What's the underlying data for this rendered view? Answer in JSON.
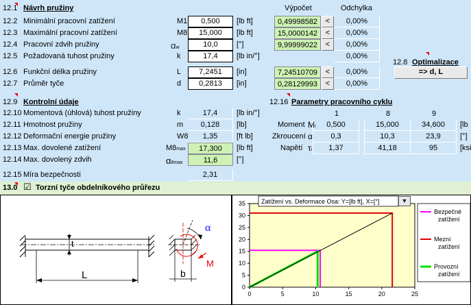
{
  "section_12": {
    "num": "12.1",
    "title": "Návrh pružiny",
    "col_vypocet": "Výpočet",
    "col_odchylka": "Odchylka",
    "rows": [
      {
        "num": "12.2",
        "label": "Minimální pracovní zatížení",
        "sym": "M1",
        "value": "0,500",
        "unit": "[lb ft]",
        "calc": "0,49998582",
        "dev": "0,00%"
      },
      {
        "num": "12.3",
        "label": "Maximální pracovní zatížení",
        "sym": "M8",
        "value": "15,000",
        "unit": "[lb ft]",
        "calc": "15,0000142",
        "dev": "0,00%"
      },
      {
        "num": "12.4",
        "label": "Pracovní zdvih pružiny",
        "sym": "α",
        "sym_sub": "w",
        "value": "10,0",
        "unit": "[°]",
        "calc": "9,99999022",
        "dev": "0,00%"
      },
      {
        "num": "12.5",
        "label": "Požadovaná tuhost pružiny",
        "sym": "k",
        "value": "17,4",
        "unit": "[lb in/°]",
        "calc": "",
        "dev": "0,00%"
      },
      {
        "num": "12.6",
        "label": "Funkční délka pružiny",
        "sym": "L",
        "value": "7,2451",
        "unit": "[in]",
        "calc": "7,24510709",
        "dev": "0,00%"
      },
      {
        "num": "12.7",
        "label": "Průměr tyče",
        "sym": "d",
        "value": "0,2813",
        "unit": "[in]",
        "calc": "0,28129993",
        "dev": "0,00%"
      }
    ],
    "lt_label": "<"
  },
  "optim": {
    "num": "12.8",
    "title": "Optimalizace",
    "button": "=> d, L"
  },
  "section_129": {
    "num": "12.9",
    "title": "Kontrolní údaje",
    "rows": [
      {
        "num": "12.10",
        "label": "Momentová (úhlová) tuhost pružiny",
        "sym": "k",
        "value": "17,4",
        "unit": "[lb in/°]"
      },
      {
        "num": "12.11",
        "label": "Hmotnost pružiny",
        "sym": "m",
        "value": "0,128",
        "unit": "[lb]"
      },
      {
        "num": "12.12",
        "label": "Deformační energie pružiny",
        "sym": "W8",
        "value": "1,35",
        "unit": "[ft lb]"
      },
      {
        "num": "12.13",
        "label": "Max. dovolené zatížení",
        "sym": "M8",
        "sym_sub": "max",
        "value": "17,300",
        "unit": "[lb ft]"
      },
      {
        "num": "12.14",
        "label": "Max. dovolený zdvih",
        "sym": "α",
        "sym_sub": "8max",
        "value": "11,6",
        "unit": "[°]"
      },
      {
        "num": "12.15",
        "label": "Míra bezpečnosti",
        "sym": "",
        "value": "2,31",
        "unit": ""
      }
    ]
  },
  "cycle": {
    "num": "12.16",
    "title": "Parametry pracovního cyklu",
    "cols": [
      "1",
      "8",
      "9"
    ],
    "rows": [
      {
        "label": "Moment",
        "sym": "M",
        "sub": "i",
        "values": [
          "0,500",
          "15,000",
          "34,600"
        ],
        "unit": "[lb"
      },
      {
        "label": "Zkroucení",
        "sym": "α",
        "sub": "i",
        "values": [
          "0,3",
          "10,3",
          "23,9"
        ],
        "unit": "[°]"
      },
      {
        "label": "Napětí",
        "sym": "τ",
        "sub": "i",
        "values": [
          "1,37",
          "41,18",
          "95"
        ],
        "unit": "[ksi"
      }
    ]
  },
  "section_13": {
    "num": "13.0",
    "checkbox": "☑",
    "title": "Torzní tyče obdelníkového průřezu"
  },
  "drawing": {
    "label_t": "t",
    "label_L": "L",
    "label_b": "b",
    "label_alpha": "α",
    "label_M": "M"
  },
  "chart_data": {
    "type": "line",
    "title": "Zatížení vs. Deformace   Osa: Y=[lb ft], X=[°]",
    "xlim": [
      0,
      25
    ],
    "ylim": [
      0,
      35
    ],
    "xticks": [
      "0",
      "5",
      "10",
      "15",
      "20",
      "25"
    ],
    "yticks": [
      "0",
      "5",
      "10",
      "15",
      "20",
      "25",
      "30",
      "35"
    ],
    "grid": false,
    "legend_position": "right",
    "series": [
      {
        "name": "Bezpečné zatížení",
        "color": "#ff00ff",
        "points": [
          [
            0,
            15.4
          ],
          [
            10.7,
            15.4
          ],
          [
            10.7,
            0
          ]
        ]
      },
      {
        "name": "Mezní zatížení",
        "color": "#e00000",
        "points": [
          [
            0,
            31
          ],
          [
            21.6,
            31
          ],
          [
            21.6,
            0
          ]
        ]
      },
      {
        "name": "Provozní zatížení",
        "color": "#00e000",
        "points": [
          [
            0,
            0
          ],
          [
            10.3,
            15
          ],
          [
            10.3,
            0
          ]
        ]
      },
      {
        "name": "",
        "color": "#000000",
        "points": [
          [
            0,
            0
          ],
          [
            21.6,
            31
          ]
        ]
      }
    ]
  }
}
